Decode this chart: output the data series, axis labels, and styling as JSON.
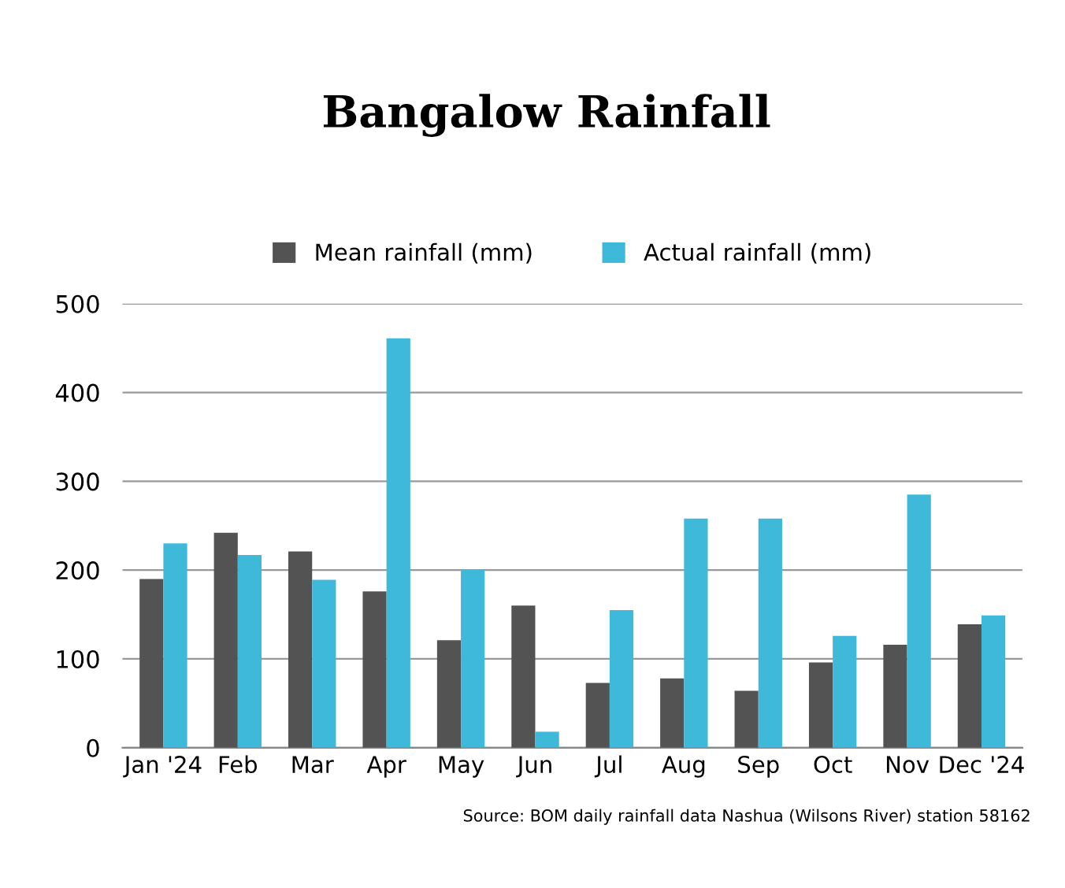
{
  "chart_data": {
    "type": "bar",
    "title": "Bangalow Rainfall",
    "categories": [
      "Jan '24",
      "Feb",
      "Mar",
      "Apr",
      "May",
      "Jun",
      "Jul",
      "Aug",
      "Sep",
      "Oct",
      "Nov",
      "Dec '24"
    ],
    "series": [
      {
        "name": "Mean rainfall (mm)",
        "color": "#535353",
        "values": [
          190,
          242,
          221,
          176,
          121,
          160,
          73,
          78,
          64,
          96,
          116,
          139
        ]
      },
      {
        "name": "Actual rainfall (mm)",
        "color": "#3fb9d9",
        "values": [
          230,
          217,
          189,
          461,
          201,
          18,
          155,
          258,
          258,
          126,
          285,
          149
        ]
      }
    ],
    "ylim": [
      0,
      500
    ],
    "yticks": [
      0,
      100,
      200,
      300,
      400,
      500
    ],
    "grid": "y",
    "legend": "top",
    "annotations": [
      "Source: BOM daily rainfall data Nashua (Wilsons River) station 58162"
    ]
  }
}
